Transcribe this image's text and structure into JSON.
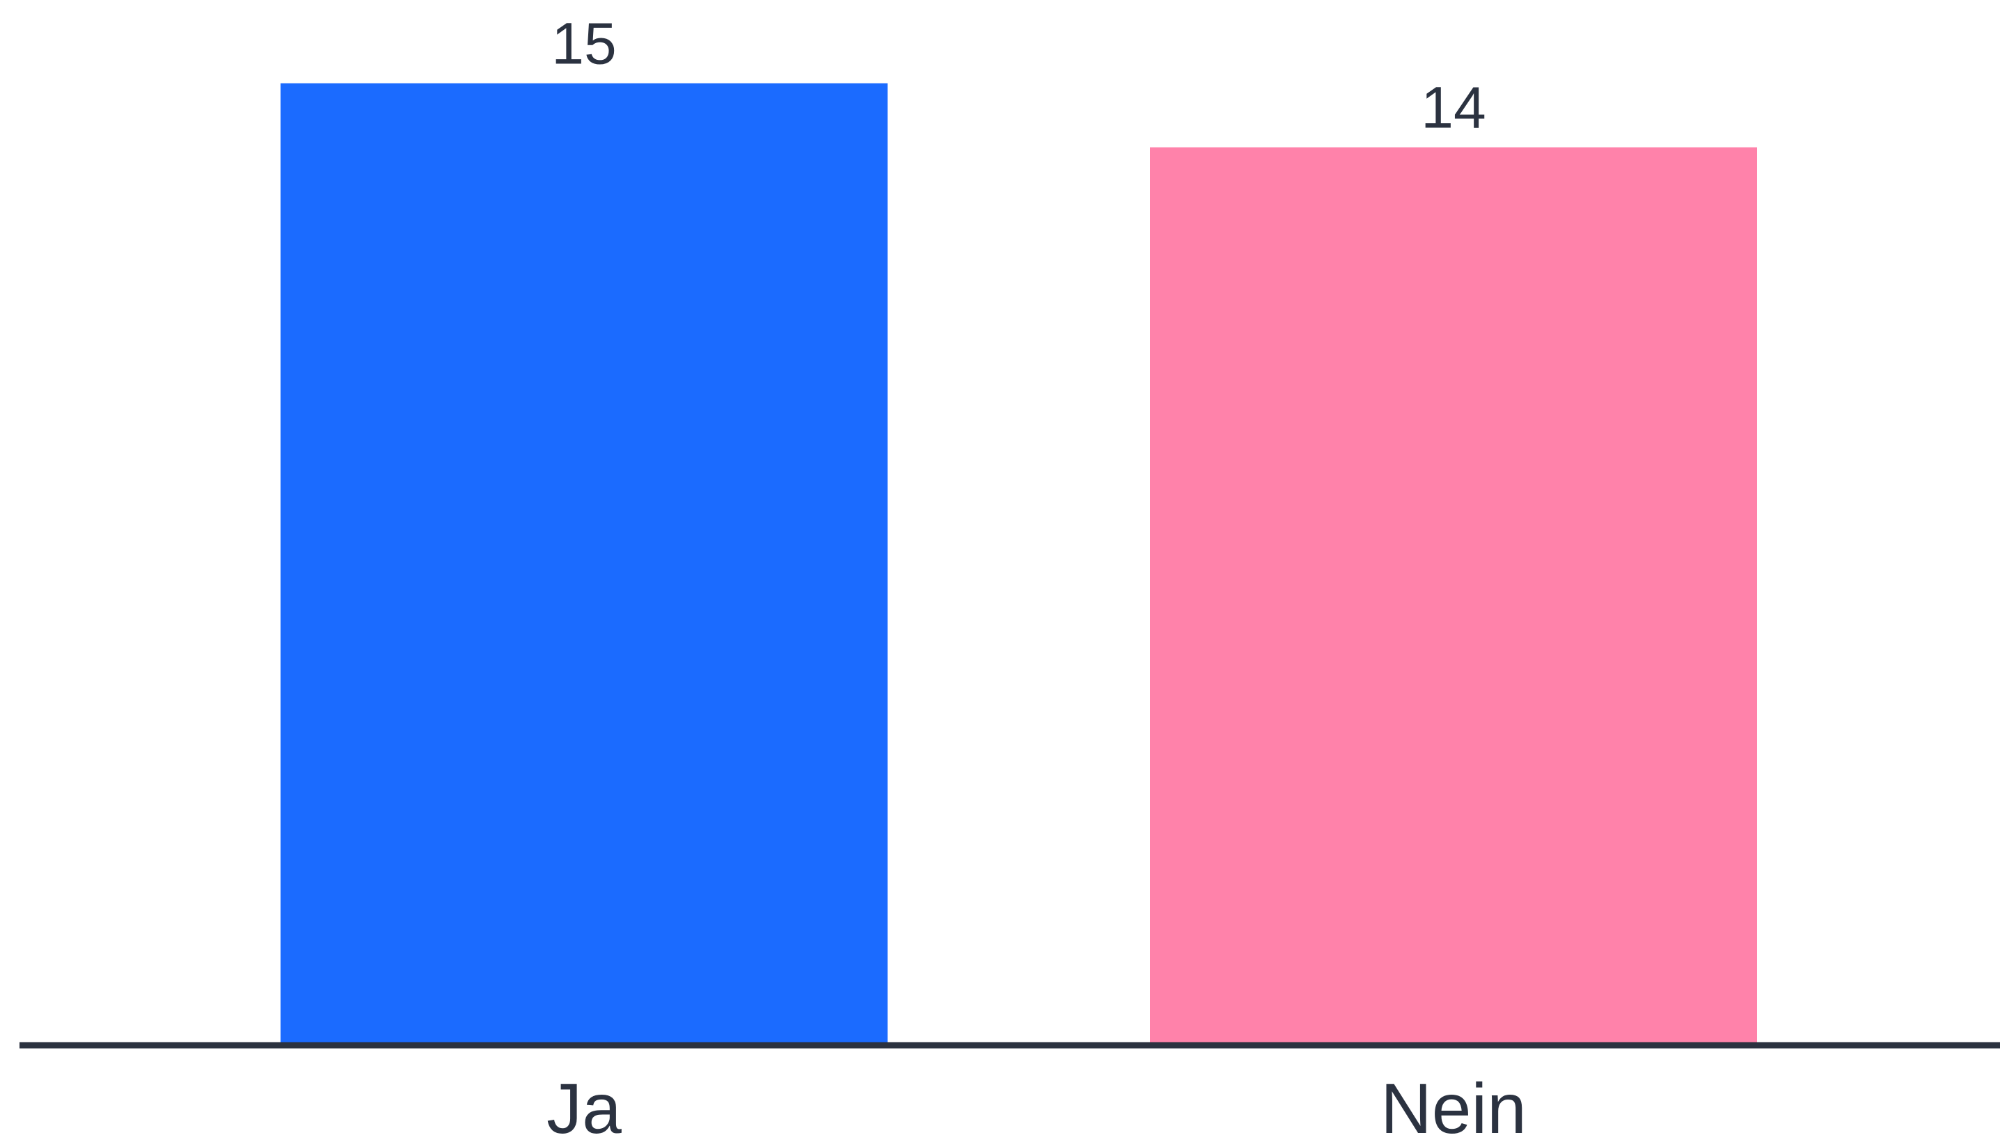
{
  "chart_data": {
    "type": "bar",
    "title": "",
    "xlabel": "",
    "ylabel": "",
    "categories": [
      "Ja",
      "Nein"
    ],
    "values": [
      15,
      14
    ],
    "value_labels": [
      "15",
      "14"
    ],
    "colors": [
      "#1b6bff",
      "#ff82aa"
    ],
    "axis_color": "#2b3240",
    "ylim": [
      0,
      16.3
    ],
    "grid": false,
    "legend": "none"
  }
}
